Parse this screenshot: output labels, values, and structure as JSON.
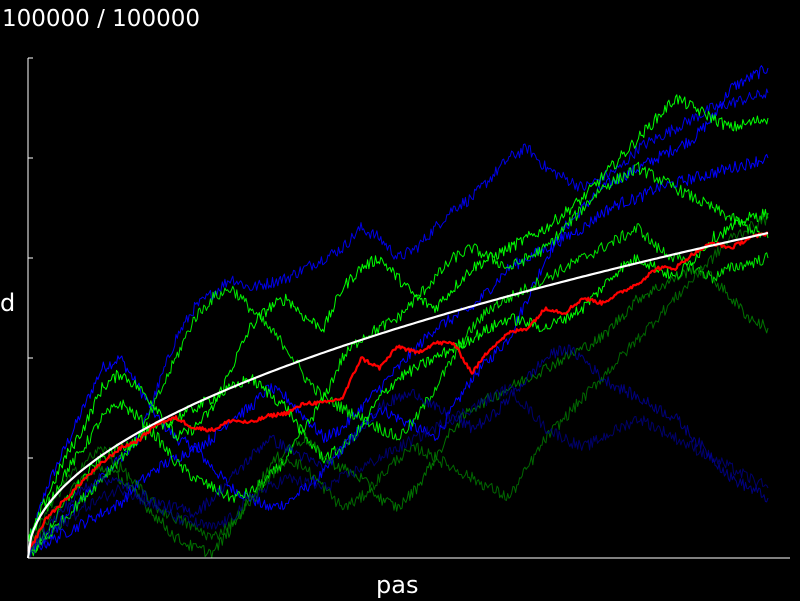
{
  "progress": {
    "text": "100000 / 100000",
    "current": 100000,
    "total": 100000
  },
  "chart_data": {
    "type": "line",
    "title": "",
    "xlabel": "pas",
    "ylabel": "d",
    "xlim": [
      0,
      100000
    ],
    "ylim": [
      0,
      500
    ],
    "y_ticks": [
      0,
      100,
      200,
      300,
      400,
      500
    ],
    "grid": false,
    "background": "#000000",
    "x": [
      0,
      2500,
      5000,
      7500,
      10000,
      12500,
      15000,
      17500,
      20000,
      22500,
      25000,
      27500,
      30000,
      32500,
      35000,
      37500,
      40000,
      42500,
      45000,
      47500,
      50000,
      52500,
      55000,
      57500,
      60000,
      62500,
      65000,
      67500,
      70000,
      72500,
      75000,
      77500,
      80000,
      82500,
      85000,
      87500,
      90000,
      92500,
      95000,
      97500,
      100000
    ],
    "series": [
      {
        "role": "mean",
        "color": "#ff0000",
        "width": 2.2,
        "opacity": 1,
        "values": [
          5,
          40,
          58,
          78,
          95,
          110,
          118,
          135,
          140,
          130,
          128,
          138,
          135,
          142,
          145,
          155,
          155,
          160,
          200,
          190,
          212,
          205,
          215,
          215,
          185,
          210,
          225,
          230,
          250,
          245,
          260,
          255,
          265,
          275,
          290,
          290,
          305,
          315,
          310,
          320,
          325
        ]
      },
      {
        "role": "theory",
        "color": "#ffffff",
        "width": 2.2,
        "opacity": 1,
        "values": [
          0,
          52,
          73,
          89,
          103,
          115,
          126,
          136,
          146,
          154,
          163,
          171,
          178,
          186,
          193,
          200,
          206,
          212,
          219,
          225,
          230,
          236,
          241,
          247,
          252,
          257,
          262,
          267,
          272,
          277,
          282,
          286,
          291,
          295,
          300,
          304,
          308,
          312,
          317,
          321,
          325
        ]
      },
      {
        "color": "#0000ff",
        "opacity": 1,
        "values": [
          10,
          70,
          110,
          150,
          190,
          200,
          170,
          140,
          120,
          110,
          90,
          70,
          60,
          50,
          55,
          70,
          85,
          110,
          130,
          150,
          140,
          130,
          120,
          150,
          180,
          200,
          220,
          260,
          300,
          330,
          350,
          370,
          380,
          390,
          400,
          410,
          420,
          440,
          470,
          480,
          490
        ]
      },
      {
        "color": "#0000ff",
        "opacity": 0.9,
        "values": [
          5,
          20,
          40,
          60,
          80,
          100,
          120,
          170,
          220,
          250,
          265,
          280,
          270,
          275,
          280,
          290,
          300,
          310,
          330,
          320,
          300,
          310,
          330,
          350,
          360,
          380,
          400,
          410,
          390,
          380,
          370,
          380,
          390,
          410,
          420,
          430,
          440,
          450,
          455,
          460,
          465
        ]
      },
      {
        "color": "#0000ff",
        "opacity": 1,
        "values": [
          8,
          15,
          25,
          35,
          45,
          55,
          75,
          90,
          100,
          110,
          120,
          140,
          150,
          170,
          160,
          140,
          120,
          130,
          150,
          170,
          190,
          210,
          230,
          240,
          250,
          270,
          290,
          300,
          310,
          320,
          330,
          345,
          355,
          360,
          370,
          375,
          380,
          385,
          390,
          395,
          400
        ]
      },
      {
        "color": "#00ff00",
        "opacity": 1,
        "values": [
          15,
          60,
          100,
          130,
          170,
          185,
          170,
          150,
          120,
          130,
          150,
          190,
          230,
          250,
          260,
          240,
          230,
          270,
          290,
          300,
          280,
          260,
          250,
          270,
          290,
          300,
          310,
          320,
          330,
          345,
          360,
          380,
          400,
          420,
          440,
          460,
          450,
          440,
          430,
          435,
          440
        ]
      },
      {
        "color": "#00ff00",
        "opacity": 0.95,
        "values": [
          20,
          50,
          85,
          110,
          140,
          155,
          140,
          120,
          95,
          80,
          70,
          60,
          65,
          80,
          100,
          130,
          160,
          200,
          220,
          230,
          240,
          260,
          280,
          300,
          310,
          300,
          290,
          300,
          310,
          330,
          350,
          370,
          380,
          390,
          380,
          370,
          360,
          350,
          340,
          330,
          320
        ]
      },
      {
        "color": "#00ff00",
        "opacity": 0.9,
        "values": [
          2,
          20,
          40,
          60,
          80,
          100,
          120,
          160,
          200,
          240,
          260,
          270,
          250,
          230,
          210,
          180,
          160,
          150,
          140,
          130,
          120,
          140,
          170,
          200,
          230,
          250,
          260,
          270,
          280,
          290,
          300,
          310,
          320,
          330,
          310,
          300,
          290,
          280,
          290,
          295,
          300
        ]
      },
      {
        "color": "#00ff00",
        "opacity": 1,
        "values": [
          0,
          25,
          55,
          80,
          100,
          110,
          120,
          130,
          140,
          150,
          160,
          170,
          180,
          165,
          150,
          120,
          100,
          110,
          130,
          160,
          180,
          190,
          200,
          210,
          220,
          230,
          240,
          235,
          230,
          240,
          250,
          270,
          290,
          300,
          290,
          280,
          300,
          320,
          330,
          340,
          345
        ]
      },
      {
        "color": "#009000",
        "opacity": 0.8,
        "values": [
          5,
          35,
          60,
          80,
          90,
          80,
          60,
          40,
          20,
          10,
          5,
          30,
          60,
          90,
          110,
          120,
          100,
          90,
          80,
          60,
          50,
          70,
          100,
          130,
          150,
          160,
          170,
          180,
          190,
          200,
          210,
          220,
          240,
          260,
          270,
          280,
          290,
          280,
          260,
          240,
          230
        ]
      },
      {
        "color": "#008000",
        "opacity": 0.8,
        "values": [
          10,
          45,
          75,
          95,
          110,
          90,
          70,
          50,
          40,
          30,
          20,
          35,
          55,
          80,
          100,
          90,
          70,
          50,
          60,
          80,
          100,
          110,
          100,
          90,
          80,
          70,
          60,
          90,
          120,
          140,
          160,
          180,
          200,
          220,
          240,
          260,
          280,
          300,
          320,
          330,
          340
        ]
      },
      {
        "color": "#0000b4",
        "opacity": 0.7,
        "values": [
          3,
          30,
          50,
          70,
          80,
          75,
          65,
          55,
          50,
          45,
          60,
          80,
          100,
          120,
          110,
          100,
          90,
          110,
          130,
          150,
          160,
          165,
          150,
          140,
          130,
          140,
          160,
          180,
          200,
          210,
          200,
          180,
          170,
          160,
          150,
          140,
          120,
          100,
          80,
          70,
          60
        ]
      },
      {
        "color": "#000096",
        "opacity": 0.7,
        "values": [
          0,
          20,
          35,
          50,
          60,
          70,
          60,
          50,
          40,
          35,
          30,
          40,
          60,
          70,
          80,
          75,
          70,
          80,
          90,
          100,
          110,
          120,
          130,
          140,
          150,
          160,
          170,
          150,
          130,
          120,
          110,
          120,
          130,
          140,
          130,
          120,
          110,
          100,
          90,
          80,
          70
        ]
      }
    ]
  }
}
